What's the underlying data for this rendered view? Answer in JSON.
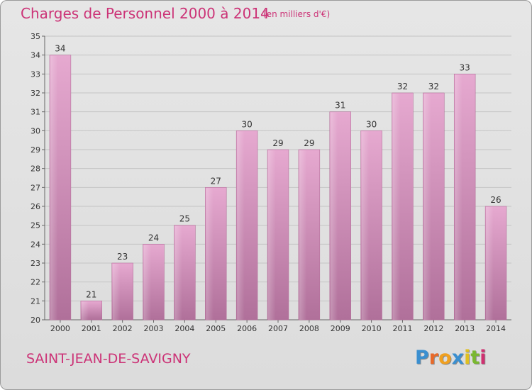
{
  "header": {
    "title": "Charges de Personnel 2000 à 2014",
    "subtitle": "(en milliers d'€)"
  },
  "footer": {
    "commune": "SAINT-JEAN-DE-SAVIGNY",
    "logo_letters": [
      "P",
      "r",
      "o",
      "x",
      "i",
      "t",
      "i"
    ],
    "logo_colors": [
      "#3a8fd0",
      "#e86a2a",
      "#f0a020",
      "#3a8fd0",
      "#e0c020",
      "#7ab830",
      "#d03070"
    ]
  },
  "chart_data": {
    "type": "bar",
    "categories": [
      "2000",
      "2001",
      "2002",
      "2003",
      "2004",
      "2005",
      "2006",
      "2007",
      "2008",
      "2009",
      "2010",
      "2011",
      "2012",
      "2013",
      "2014"
    ],
    "values": [
      34,
      21,
      23,
      24,
      25,
      27,
      30,
      29,
      29,
      31,
      30,
      32,
      32,
      33,
      26
    ],
    "data_labels": [
      "34",
      "21",
      "23",
      "24",
      "25",
      "27",
      "30",
      "29",
      "29",
      "31",
      "30",
      "32",
      "32",
      "33",
      "26"
    ],
    "title": "Charges de Personnel 2000 à 2014",
    "xlabel": "",
    "ylabel": "",
    "ylim": [
      20,
      35
    ],
    "yticks": [
      "20",
      "21",
      "22",
      "23",
      "24",
      "25",
      "26",
      "27",
      "28",
      "29",
      "30",
      "31",
      "32",
      "33",
      "34",
      "35"
    ],
    "grid": true,
    "bar_color": "#d98bbb"
  }
}
